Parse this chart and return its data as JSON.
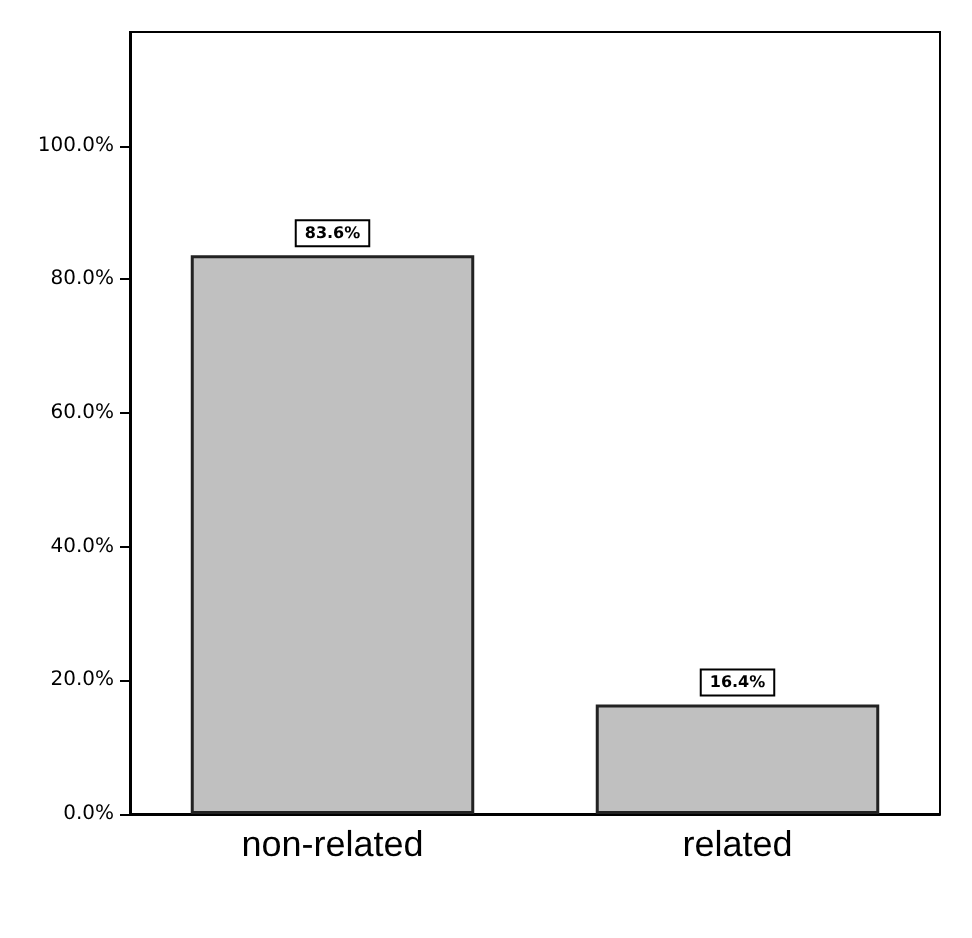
{
  "chart_data": {
    "type": "bar",
    "categories": [
      "non-related",
      "related"
    ],
    "values": [
      83.6,
      16.4
    ],
    "color": "#c0c0c0",
    "value_labels": [
      "83.6%",
      "16.4%"
    ],
    "ylim": [
      0,
      117
    ],
    "yticks": [
      {
        "value": 0,
        "label": "0.0%"
      },
      {
        "value": 20,
        "label": "20.0%"
      },
      {
        "value": 40,
        "label": "40.0%"
      },
      {
        "value": 60,
        "label": "60.0%"
      },
      {
        "value": 80,
        "label": "80.0%"
      },
      {
        "value": 100,
        "label": "100.0%"
      }
    ],
    "grid": false
  }
}
